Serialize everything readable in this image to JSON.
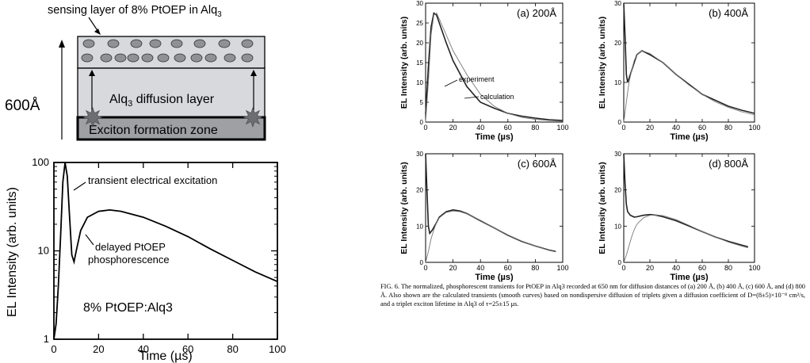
{
  "schematic": {
    "sensing_label": "sensing layer of 8% PtOEP in Alq",
    "sensing_label_sub": "3",
    "thickness_label": "600Å",
    "diffusion_label_pre": "Alq",
    "diffusion_label_sub": "3",
    "diffusion_label_post": " diffusion layer",
    "formation_label": "Exciton formation zone"
  },
  "caption": "FIG. 6. The normalized, phosphorescent transients for PtOEP in Alq3 recorded at 650 nm for diffusion distances of (a) 200 Å, (b) 400 Å, (c) 600 Å, and (d) 800 Å. Also shown are the calculated transients (smooth curves) based on nondispersive diffusion of triplets given a diffusion coefficient of D=(8±5)×10⁻⁸ cm²/s, and a triplet exciton lifetime in Alq3 of τ=25±15 μs.",
  "chart_data": [
    {
      "id": "main",
      "type": "line",
      "xlabel": "Time (µs)",
      "ylabel": "EL Intensity (arb. units)",
      "xlim": [
        0,
        100
      ],
      "ylim": [
        1,
        100
      ],
      "yscale": "log",
      "xticks": [
        "0",
        "20",
        "40",
        "60",
        "80",
        "100"
      ],
      "yticks": [
        "1",
        "10",
        "100"
      ],
      "grid": false,
      "annotations": [
        "transient electrical excitation",
        "delayed PtOEP",
        "phosphorescence",
        "8% PtOEP:Alq3"
      ],
      "series": [
        {
          "x": [
            0,
            1,
            2,
            3,
            4,
            5,
            6,
            7,
            8,
            9,
            10,
            12,
            15,
            20,
            25,
            30,
            40,
            50,
            60,
            70,
            80,
            90,
            100
          ],
          "y": [
            1,
            1.5,
            4,
            15,
            60,
            100,
            70,
            25,
            9,
            7.5,
            10,
            17,
            24,
            28,
            29,
            28,
            24,
            19,
            14.5,
            10.5,
            7.8,
            5.8,
            4.5
          ]
        }
      ]
    },
    {
      "id": "a",
      "type": "line",
      "panel_label": "(a) 200Å",
      "xlabel": "Time (µs)",
      "ylabel": "EL Intensity (arb. units)",
      "xlim": [
        0,
        100
      ],
      "ylim": [
        0,
        30
      ],
      "xticks": [
        "0",
        "20",
        "40",
        "60",
        "80",
        "100"
      ],
      "yticks": [
        "0",
        "5",
        "10",
        "15",
        "20",
        "25",
        "30"
      ],
      "legend": [
        "experiment",
        "calculation"
      ],
      "series": [
        {
          "name": "experiment",
          "x": [
            0,
            2,
            4,
            6,
            8,
            10,
            15,
            20,
            30,
            40,
            50,
            60,
            70,
            80,
            90,
            100
          ],
          "y": [
            2,
            14,
            24,
            27.5,
            27,
            25,
            20,
            15.5,
            9,
            5,
            3.5,
            2.2,
            1.5,
            1,
            0.6,
            0.4
          ]
        },
        {
          "name": "calculation",
          "x": [
            0,
            2,
            4,
            6,
            8,
            10,
            15,
            20,
            30,
            40,
            50,
            60,
            70,
            80,
            90,
            100
          ],
          "y": [
            0,
            10,
            22,
            27,
            27.5,
            26,
            22,
            18,
            12,
            7,
            4,
            2.2,
            1.2,
            0.7,
            0.4,
            0.2
          ]
        }
      ]
    },
    {
      "id": "b",
      "type": "line",
      "panel_label": "(b) 400Å",
      "xlabel": "Time (µs)",
      "ylabel": "EL Intensity (arb. units)",
      "xlim": [
        0,
        100
      ],
      "ylim": [
        0,
        30
      ],
      "xticks": [
        "0",
        "20",
        "40",
        "60",
        "80",
        "100"
      ],
      "yticks": [
        "0",
        "10",
        "20",
        "30"
      ],
      "series": [
        {
          "name": "experiment",
          "x": [
            0,
            1,
            2,
            3,
            5,
            8,
            10,
            14,
            20,
            30,
            40,
            50,
            60,
            70,
            80,
            90,
            100
          ],
          "y": [
            30,
            22,
            12,
            10,
            12,
            15,
            17,
            18,
            17,
            15,
            12,
            9.5,
            7,
            5.5,
            4,
            3,
            2.2
          ]
        },
        {
          "name": "calculation",
          "x": [
            0,
            2,
            4,
            6,
            8,
            10,
            14,
            20,
            30,
            40,
            50,
            60,
            70,
            80,
            90,
            100
          ],
          "y": [
            0,
            5,
            10,
            13,
            15.5,
            17,
            18,
            17.3,
            15,
            12,
            9.3,
            7,
            5.1,
            3.7,
            2.6,
            1.8
          ]
        }
      ]
    },
    {
      "id": "c",
      "type": "line",
      "panel_label": "(c) 600Å",
      "xlabel": "Time (µs)",
      "ylabel": "EL Intensity (arb. units)",
      "xlim": [
        0,
        100
      ],
      "ylim": [
        0,
        30
      ],
      "xticks": [
        "0",
        "20",
        "40",
        "60",
        "80",
        "100"
      ],
      "yticks": [
        "0",
        "10",
        "20",
        "30"
      ],
      "series": [
        {
          "name": "experiment",
          "x": [
            0,
            1,
            2,
            3,
            5,
            8,
            10,
            15,
            20,
            25,
            30,
            40,
            50,
            60,
            70,
            80,
            90,
            95
          ],
          "y": [
            30,
            20,
            10,
            8,
            9,
            11,
            12.5,
            14,
            14.5,
            14.2,
            13.5,
            11.5,
            9.5,
            7.5,
            5.8,
            4.5,
            3.4,
            3
          ]
        },
        {
          "name": "calculation",
          "x": [
            0,
            2,
            4,
            6,
            8,
            10,
            15,
            20,
            25,
            30,
            40,
            50,
            60,
            70,
            80,
            90,
            95
          ],
          "y": [
            0,
            3,
            6.5,
            9,
            11,
            12.3,
            13.8,
            14.2,
            14,
            13.4,
            11.6,
            9.5,
            7.6,
            5.9,
            4.5,
            3.3,
            2.9
          ]
        }
      ]
    },
    {
      "id": "d",
      "type": "line",
      "panel_label": "(d) 800Å",
      "xlabel": "Time (µs)",
      "ylabel": "EL Intensity (arb. units)",
      "xlim": [
        0,
        100
      ],
      "ylim": [
        0,
        30
      ],
      "xticks": [
        "0",
        "20",
        "40",
        "60",
        "80",
        "100"
      ],
      "yticks": [
        "0",
        "10",
        "20",
        "30"
      ],
      "series": [
        {
          "name": "experiment",
          "x": [
            0,
            1,
            2,
            3,
            5,
            8,
            10,
            15,
            20,
            25,
            30,
            40,
            50,
            60,
            70,
            80,
            90,
            95
          ],
          "y": [
            30,
            22,
            16,
            14,
            13,
            12.5,
            12.6,
            13,
            13.2,
            13,
            12.6,
            11.5,
            10,
            8.5,
            7,
            5.8,
            4.8,
            4.3
          ]
        },
        {
          "name": "calculation",
          "x": [
            0,
            2,
            4,
            6,
            8,
            10,
            15,
            20,
            25,
            30,
            40,
            50,
            60,
            70,
            80,
            90,
            95
          ],
          "y": [
            0,
            2,
            4.5,
            7,
            9,
            10.5,
            12.3,
            13,
            13.1,
            12.9,
            11.8,
            10.2,
            8.5,
            7,
            5.6,
            4.5,
            4
          ]
        }
      ]
    }
  ]
}
